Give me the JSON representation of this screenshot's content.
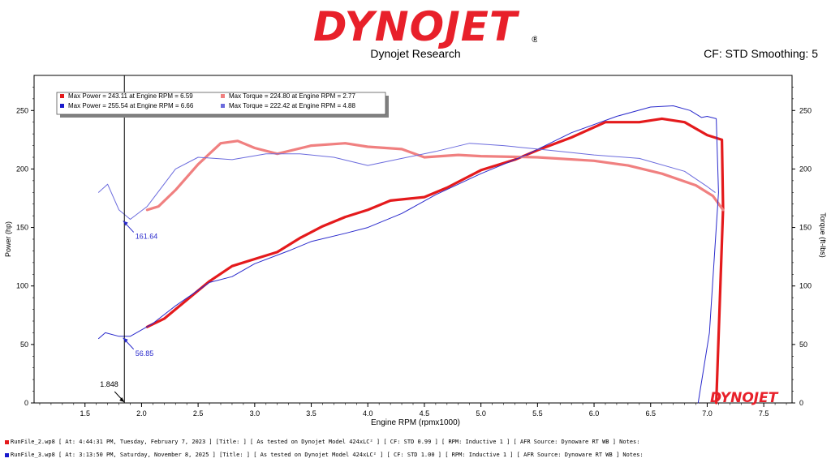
{
  "header": {
    "brand": "DYNOJET",
    "subtitle": "Dynojet Research",
    "cf_smoothing": "CF: STD Smoothing: 5"
  },
  "chart_data": {
    "type": "line",
    "xlabel": "Engine RPM (rpmx1000)",
    "ylabel_left": "Power (hp)",
    "ylabel_right": "Torque (ft-lbs)",
    "xlim": [
      1.05,
      7.75
    ],
    "ylim": [
      0,
      280
    ],
    "x_ticks": [
      "1.5",
      "2.0",
      "2.5",
      "3.0",
      "3.5",
      "4.0",
      "4.5",
      "5.0",
      "5.5",
      "6.0",
      "6.5",
      "7.0",
      "7.5"
    ],
    "y_ticks": [
      "0",
      "50",
      "100",
      "150",
      "200",
      "250"
    ],
    "y_tick_values": [
      0,
      50,
      100,
      150,
      200,
      250
    ],
    "x_tick_values": [
      1.5,
      2.0,
      2.5,
      3.0,
      3.5,
      4.0,
      4.5,
      5.0,
      5.5,
      6.0,
      6.5,
      7.0,
      7.5
    ],
    "legend": [
      {
        "text": "Max Power = 243.11 at Engine RPM = 6.59",
        "color": "#e41a1c"
      },
      {
        "text": "Max Torque = 224.80 at Engine RPM = 2.77",
        "color": "#f08080"
      },
      {
        "text": "Max Power = 255.54 at Engine RPM = 6.66",
        "color": "#1a1acc"
      },
      {
        "text": "Max Torque = 222.42 at Engine RPM = 4.88",
        "color": "#6b6bdd"
      }
    ],
    "cursor": {
      "x": 1.848,
      "label": "1.848"
    },
    "annotations": [
      {
        "text": "161.64",
        "x": 1.88,
        "y": 157
      },
      {
        "text": "56.85",
        "x": 1.88,
        "y": 57
      }
    ],
    "series": [
      {
        "color": "#e41a1c",
        "width": 3.2,
        "points": [
          [
            2.05,
            65
          ],
          [
            2.2,
            72
          ],
          [
            2.4,
            88
          ],
          [
            2.6,
            104
          ],
          [
            2.8,
            117
          ],
          [
            3.0,
            123
          ],
          [
            3.2,
            129
          ],
          [
            3.4,
            141
          ],
          [
            3.6,
            151
          ],
          [
            3.8,
            159
          ],
          [
            4.0,
            165
          ],
          [
            4.2,
            173
          ],
          [
            4.5,
            176
          ],
          [
            4.7,
            184
          ],
          [
            5.0,
            199
          ],
          [
            5.3,
            208
          ],
          [
            5.5,
            216
          ],
          [
            5.8,
            227
          ],
          [
            6.1,
            240
          ],
          [
            6.4,
            240
          ],
          [
            6.6,
            243
          ],
          [
            6.8,
            240
          ],
          [
            7.0,
            229
          ],
          [
            7.13,
            225
          ],
          [
            7.14,
            166
          ],
          [
            7.08,
            0
          ]
        ]
      },
      {
        "color": "#f08080",
        "width": 3.2,
        "points": [
          [
            2.05,
            165
          ],
          [
            2.15,
            168
          ],
          [
            2.3,
            182
          ],
          [
            2.5,
            204
          ],
          [
            2.7,
            222
          ],
          [
            2.85,
            224
          ],
          [
            3.0,
            218
          ],
          [
            3.2,
            213
          ],
          [
            3.5,
            220
          ],
          [
            3.8,
            222
          ],
          [
            4.0,
            219
          ],
          [
            4.3,
            217
          ],
          [
            4.5,
            210
          ],
          [
            4.8,
            212
          ],
          [
            5.0,
            211
          ],
          [
            5.5,
            210
          ],
          [
            6.0,
            207
          ],
          [
            6.3,
            203
          ],
          [
            6.6,
            196
          ],
          [
            6.9,
            186
          ],
          [
            7.05,
            177
          ],
          [
            7.14,
            165
          ]
        ]
      },
      {
        "color": "#2a2acc",
        "width": 1.0,
        "points": [
          [
            1.62,
            55
          ],
          [
            1.68,
            60
          ],
          [
            1.8,
            57
          ],
          [
            1.9,
            57
          ],
          [
            2.1,
            68
          ],
          [
            2.3,
            83
          ],
          [
            2.6,
            103
          ],
          [
            2.8,
            108
          ],
          [
            3.0,
            119
          ],
          [
            3.3,
            130
          ],
          [
            3.5,
            138
          ],
          [
            3.8,
            145
          ],
          [
            4.0,
            150
          ],
          [
            4.3,
            162
          ],
          [
            4.6,
            178
          ],
          [
            5.0,
            196
          ],
          [
            5.4,
            212
          ],
          [
            5.8,
            231
          ],
          [
            6.2,
            245
          ],
          [
            6.5,
            253
          ],
          [
            6.7,
            254
          ],
          [
            6.85,
            250
          ],
          [
            6.95,
            244
          ],
          [
            7.0,
            245
          ],
          [
            7.08,
            243
          ],
          [
            7.1,
            180
          ],
          [
            7.02,
            60
          ],
          [
            6.92,
            0
          ]
        ]
      },
      {
        "color": "#6b6bdd",
        "width": 1.0,
        "points": [
          [
            1.62,
            180
          ],
          [
            1.7,
            187
          ],
          [
            1.8,
            165
          ],
          [
            1.9,
            157
          ],
          [
            2.05,
            168
          ],
          [
            2.3,
            200
          ],
          [
            2.5,
            210
          ],
          [
            2.8,
            208
          ],
          [
            3.1,
            213
          ],
          [
            3.4,
            213
          ],
          [
            3.7,
            210
          ],
          [
            4.0,
            203
          ],
          [
            4.3,
            209
          ],
          [
            4.6,
            215
          ],
          [
            4.9,
            222
          ],
          [
            5.2,
            220
          ],
          [
            5.6,
            216
          ],
          [
            6.0,
            212
          ],
          [
            6.4,
            209
          ],
          [
            6.8,
            198
          ],
          [
            7.0,
            185
          ],
          [
            7.07,
            180
          ]
        ]
      }
    ]
  },
  "footer": {
    "run1": "RunFile_2.wp8 [ At: 4:44:31 PM, Tuesday, February 7, 2023 ] [Title: ]  [ As tested on Dynojet Model 424xLC² ] [ CF: STD 0.99 ] [ RPM: Inductive 1 ] [ AFR Source: Dynoware RT WB ] Notes:",
    "run2": "RunFile_3.wp8 [ At: 3:13:50 PM, Saturday, November 8, 2025 ] [Title: ]  [ As tested on Dynojet Model 424xLC² ] [ CF: STD 1.00 ] [ RPM: Inductive 1 ] [ AFR Source: Dynoware RT WB ] Notes:",
    "run1_color": "#e41a1c",
    "run2_color": "#1a1acc"
  }
}
